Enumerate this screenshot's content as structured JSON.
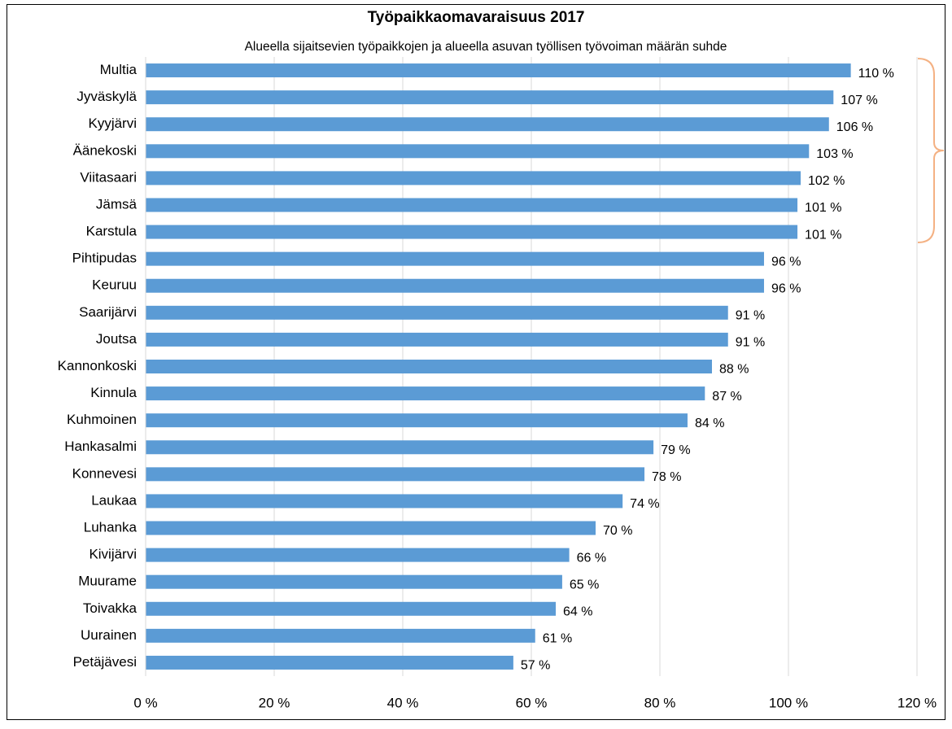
{
  "chart_data": {
    "type": "bar",
    "orientation": "horizontal",
    "title": "Työpaikkaomavaraisuus 2017",
    "subtitle": "Alueella sijaitsevien työpaikkojen ja alueella asuvan työllisen työvoiman määrän suhde",
    "categories": [
      "Multia",
      "Jyväskylä",
      "Kyyjärvi",
      "Äänekoski",
      "Viitasaari",
      "Jämsä",
      "Karstula",
      "Pihtipudas",
      "Keuruu",
      "Saarijärvi",
      "Joutsa",
      "Kannonkoski",
      "Kinnula",
      "Kuhmoinen",
      "Hankasalmi",
      "Konnevesi",
      "Laukaa",
      "Luhanka",
      "Kivijärvi",
      "Muurame",
      "Toivakka",
      "Uurainen",
      "Petäjävesi"
    ],
    "values": [
      109.7,
      107.0,
      106.3,
      103.2,
      101.9,
      101.4,
      101.4,
      96.2,
      96.2,
      90.6,
      90.6,
      88.1,
      87.0,
      84.3,
      79.0,
      77.6,
      74.2,
      70.0,
      65.9,
      64.8,
      63.8,
      60.6,
      57.2
    ],
    "value_labels": [
      "110 %",
      "107 %",
      "106 %",
      "103 %",
      "102 %",
      "101 %",
      "101 %",
      "96 %",
      "96 %",
      "91 %",
      "91 %",
      "88 %",
      "87 %",
      "84 %",
      "79 %",
      "78 %",
      "74 %",
      "70 %",
      "66 %",
      "65 %",
      "64 %",
      "61 %",
      "57 %"
    ],
    "color": "#5b9bd5",
    "xlim": [
      0,
      120
    ],
    "xticks": [
      {
        "value": 0,
        "label": "0 %"
      },
      {
        "value": 20,
        "label": "20 %"
      },
      {
        "value": 40,
        "label": "40 %"
      },
      {
        "value": 60,
        "label": "60 %"
      },
      {
        "value": 80,
        "label": "80 %"
      },
      {
        "value": 100,
        "label": "100 %"
      },
      {
        "value": 120,
        "label": "120 %"
      }
    ],
    "grid": true
  }
}
